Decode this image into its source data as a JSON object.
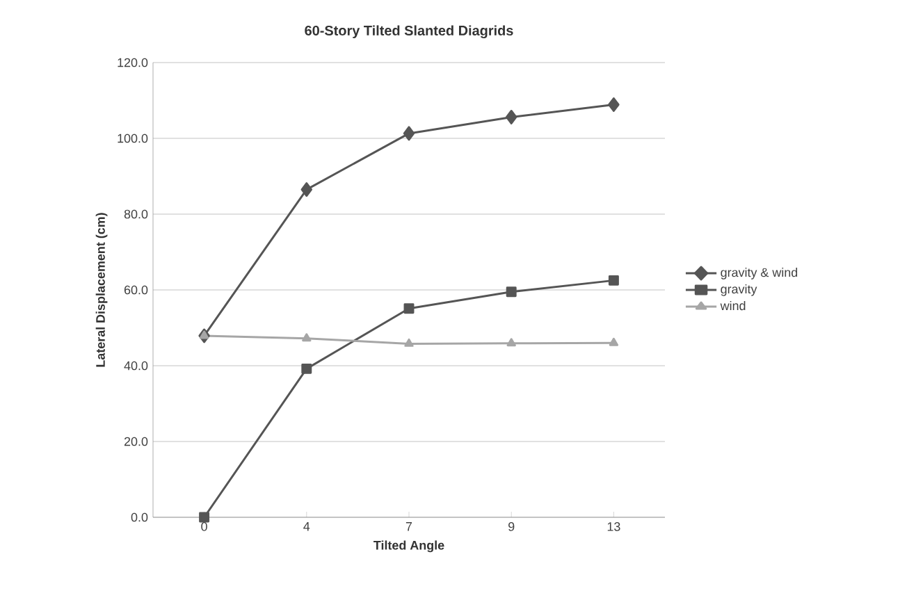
{
  "chart_data": {
    "type": "line",
    "title": "60-Story Tilted Slanted Diagrids",
    "xlabel": "Tilted Angle",
    "ylabel": "Lateral Displacement (cm)",
    "categories": [
      "0",
      "4",
      "7",
      "9",
      "13"
    ],
    "series": [
      {
        "name": "gravity & wind",
        "color": "#555555",
        "marker": "diamond",
        "values": [
          47.9,
          86.5,
          101.3,
          105.6,
          108.9
        ]
      },
      {
        "name": "gravity",
        "color": "#555555",
        "marker": "square",
        "values": [
          0.0,
          39.2,
          55.1,
          59.5,
          62.5
        ]
      },
      {
        "name": "wind",
        "color": "#a6a6a6",
        "marker": "triangle",
        "values": [
          47.9,
          47.2,
          45.8,
          45.9,
          46.0
        ]
      }
    ],
    "ylim": [
      0,
      120
    ],
    "yticks": [
      {
        "value": 0,
        "label": "0.0"
      },
      {
        "value": 20,
        "label": "20.0"
      },
      {
        "value": 40,
        "label": "40.0"
      },
      {
        "value": 60,
        "label": "60.0"
      },
      {
        "value": 80,
        "label": "80.0"
      },
      {
        "value": 100,
        "label": "100.0"
      },
      {
        "value": 120,
        "label": "120.0"
      }
    ],
    "grid": "y",
    "legend": "right"
  }
}
